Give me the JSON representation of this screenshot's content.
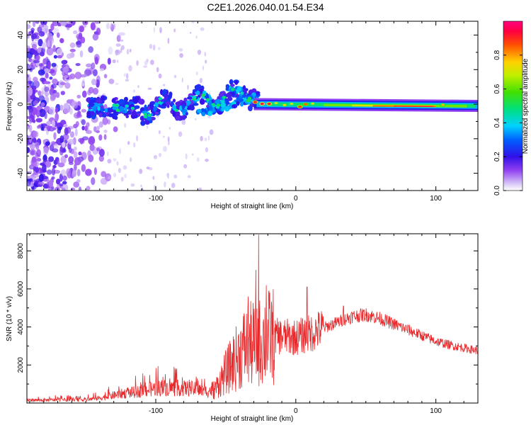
{
  "title": "C2E1.2026.040.01.54.E34",
  "colors": {
    "snr_line": "#e8282a",
    "frame": "#000000"
  },
  "chart_data": [
    {
      "type": "heatmap",
      "name": "spectrogram",
      "xlabel": "Height of straight line (km)",
      "ylabel": "Frequency (Hz)",
      "xlim": [
        -192,
        130
      ],
      "ylim": [
        -50,
        48
      ],
      "xticks": [
        -100,
        0,
        100
      ],
      "yticks": [
        -40,
        -20,
        0,
        20,
        40
      ],
      "xtick_labels": [
        "-100",
        "0",
        "100"
      ],
      "ytick_labels": [
        "-40",
        "-20",
        "0",
        "20",
        "40"
      ],
      "colorbar": {
        "label": "Normalized spectral amplitude",
        "range": [
          0,
          1
        ],
        "ticks": [
          0.0,
          0.2,
          0.4,
          0.6,
          0.8
        ],
        "tick_labels": [
          "0.0",
          "0.2",
          "0.4",
          "0.6",
          "0.8"
        ]
      },
      "features": [
        {
          "description": "broadband noise",
          "x_range": [
            -192,
            -130
          ],
          "freq_range": [
            -50,
            48
          ],
          "amplitude": 0.1
        },
        {
          "description": "main echo track",
          "x_range": [
            -145,
            -25
          ],
          "freq_center": [
            -4,
            8
          ],
          "amplitude": 0.3
        },
        {
          "description": "strong narrow echo",
          "x_range": [
            -30,
            130
          ],
          "freq_center": [
            0,
            -2
          ],
          "amplitude_peak": 0.95
        }
      ]
    },
    {
      "type": "line",
      "name": "snr",
      "xlabel": "Height of straight line (km)",
      "ylabel": "SNR (10 * v/v)",
      "xlim": [
        -192,
        130
      ],
      "ylim": [
        0,
        8900
      ],
      "xticks": [
        -100,
        0,
        100
      ],
      "yticks": [
        2000,
        4000,
        6000,
        8000
      ],
      "xtick_labels": [
        "-100",
        "0",
        "100"
      ],
      "ytick_labels": [
        "2000",
        "4000",
        "6000",
        "8000"
      ],
      "envelope": {
        "x": [
          -192,
          -150,
          -140,
          -125,
          -110,
          -100,
          -90,
          -75,
          -65,
          -58,
          -50,
          -42,
          -36,
          -30,
          -25,
          -22,
          -18,
          -10,
          0,
          10,
          20,
          30,
          40,
          50,
          60,
          70,
          80,
          90,
          100,
          110,
          120,
          130
        ],
        "y": [
          150,
          180,
          260,
          480,
          620,
          780,
          800,
          760,
          620,
          700,
          1600,
          2400,
          3000,
          3100,
          3200,
          3400,
          3500,
          3500,
          3450,
          3650,
          3950,
          4250,
          4550,
          4650,
          4450,
          4150,
          3850,
          3550,
          3250,
          3050,
          2900,
          2750
        ]
      },
      "peaks": [
        {
          "x": -26.5,
          "y": 8850
        },
        {
          "x": -28.5,
          "y": 7000
        },
        {
          "x": -34,
          "y": 5600
        },
        {
          "x": -21,
          "y": 6200
        },
        {
          "x": 8,
          "y": 6100
        },
        {
          "x": 34,
          "y": 5100
        }
      ]
    }
  ]
}
